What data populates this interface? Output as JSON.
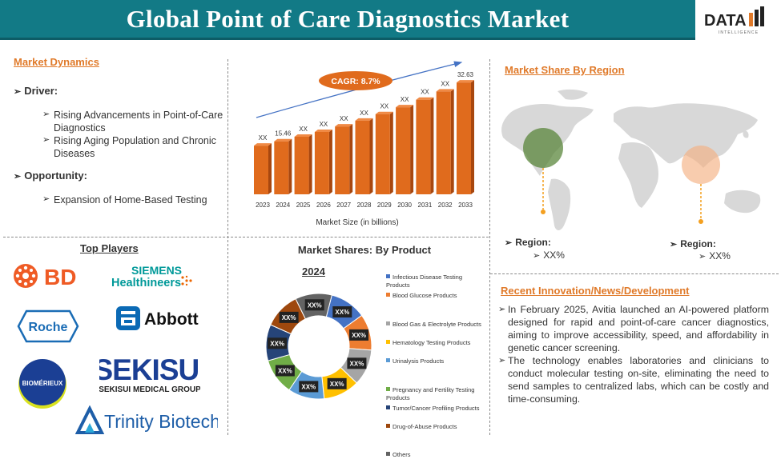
{
  "header": {
    "title": "Global Point of Care Diagnostics Market",
    "logo_text": "DATA",
    "logo_sub": "INTELLIGENCE"
  },
  "dynamics": {
    "title": "Market Dynamics",
    "driver_label": "Driver:",
    "drivers": [
      "Rising Advancements in Point-of-Care Diagnostics",
      "Rising Aging Population and Chronic Diseases"
    ],
    "opportunity_label": "Opportunity:",
    "opportunities": [
      "Expansion of Home-Based Testing"
    ]
  },
  "players": {
    "title": "Top Players",
    "logos": [
      "BD",
      "SIEMENS",
      "Healthineers",
      "Roche",
      "Abbott",
      "BIOMÉRIEUX",
      "SEKISUI",
      "SEKISUI MEDICAL GROUP",
      "Trinity Biotech"
    ]
  },
  "region": {
    "title": "Market Share By Region",
    "left_label": "Region:",
    "left_value": "XX%",
    "right_label": "Region:",
    "right_value": "XX%"
  },
  "news": {
    "title": "Recent Innovation/News/Development",
    "items": [
      "In February 2025, Avitia launched an AI-powered platform designed for rapid and point-of-care cancer diagnostics, aiming to improve accessibility, speed, and affordability in genetic cancer screening.",
      "The technology enables laboratories and clinicians to conduct molecular testing on-site, eliminating the need to send samples to centralized labs, which can be costly and time-consuming."
    ]
  },
  "colors": {
    "teal": "#127a86",
    "orange": "#e07a2a",
    "bar": "#e06b1d"
  },
  "chart_data": [
    {
      "type": "bar",
      "categories": [
        "2023",
        "2024",
        "2025",
        "2026",
        "2027",
        "2028",
        "2029",
        "2030",
        "2031",
        "2032",
        "2033"
      ],
      "values": [
        14.2,
        15.46,
        16.8,
        18.2,
        19.8,
        21.5,
        23.4,
        25.4,
        27.6,
        30.0,
        32.63
      ],
      "labels": [
        "XX",
        "15.46",
        "XX",
        "XX",
        "XX",
        "XX",
        "XX",
        "XX",
        "XX",
        "XX",
        "32.63"
      ],
      "xlabel": "Market Size (in billions)",
      "annotation": "CAGR: 8.7%",
      "ylim": [
        0,
        35
      ]
    },
    {
      "type": "pie",
      "title": "Market Shares: By Product",
      "subtitle": "2024",
      "categories": [
        "Infectious Disease Testing Products",
        "Blood Glucose Products",
        "Blood Gas & Electrolyte Products",
        "Hematology Testing Products",
        "Urinalysis Products",
        "Pregnancy and Fertility Testing Products",
        "Tumor/Cancer Profiling Products",
        "Drug-of-Abuse Products",
        "Others"
      ],
      "values": [
        11.1,
        11.1,
        11.1,
        11.1,
        11.1,
        11.1,
        11.1,
        11.1,
        11.2
      ],
      "labels": [
        "XX%",
        "XX%",
        "XX%",
        "XX%",
        "XX%",
        "XX%",
        "XX%",
        "XX%",
        "XX%"
      ],
      "colors": [
        "#4472c4",
        "#ed7d31",
        "#a5a5a5",
        "#ffc000",
        "#5b9bd5",
        "#70ad47",
        "#264478",
        "#9e480e",
        "#636363"
      ]
    }
  ]
}
